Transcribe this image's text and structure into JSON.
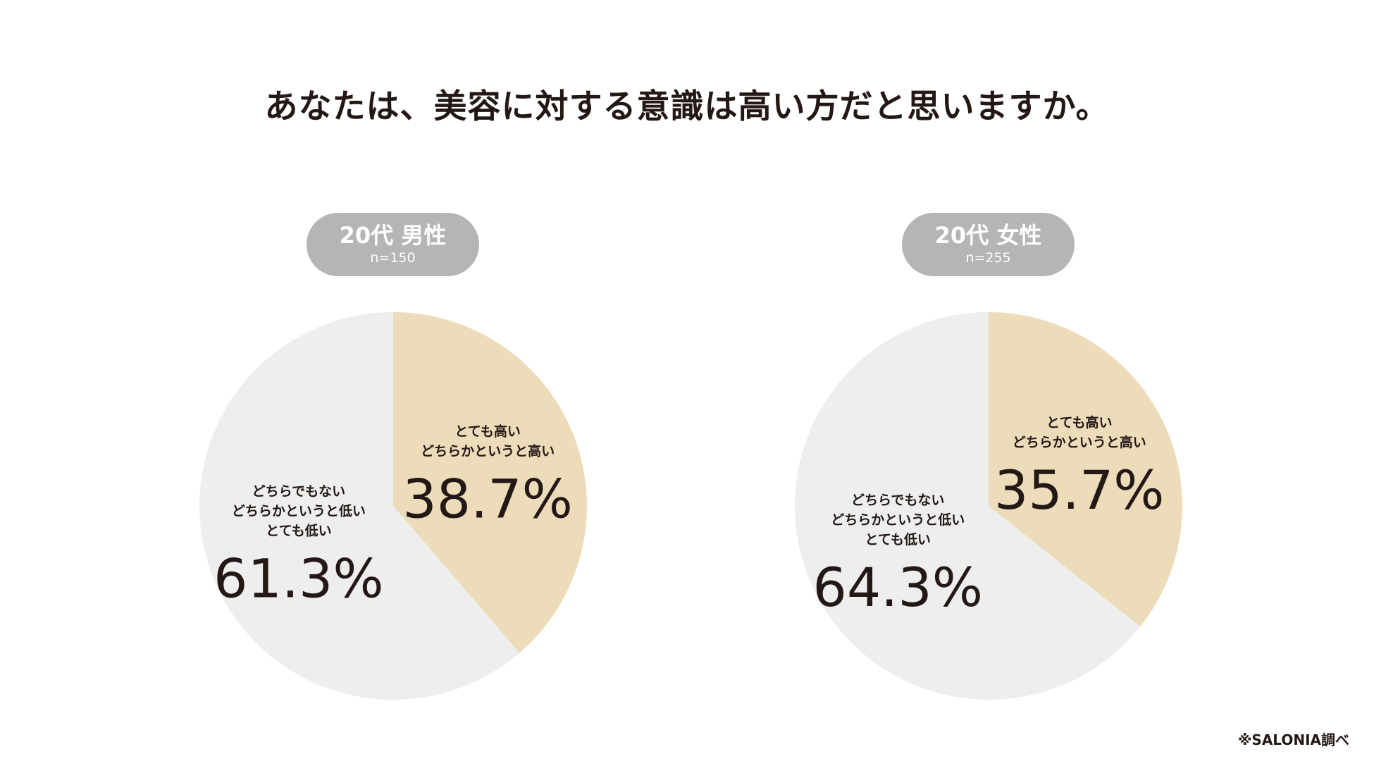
{
  "title": "あなたは、美容に対する意識は高い方だと思いますか。",
  "source": "※SALONIA調べ",
  "colors": {
    "high": "#eddcb9",
    "low": "#eeeeee",
    "badge": "#b5b5b5",
    "text": "#231815"
  },
  "chart_data": [
    {
      "type": "pie",
      "group": "20代 男性",
      "n": "n=150",
      "slices": [
        {
          "labels": [
            "とても高い",
            "どちらかというと高い"
          ],
          "value": 38.7,
          "value_label": "38.7%",
          "color": "#eddcb9"
        },
        {
          "labels": [
            "どちらでもない",
            "どちらかというと低い",
            "とても低い"
          ],
          "value": 61.3,
          "value_label": "61.3%",
          "color": "#eeeeee"
        }
      ]
    },
    {
      "type": "pie",
      "group": "20代 女性",
      "n": "n=255",
      "slices": [
        {
          "labels": [
            "とても高い",
            "どちらかというと高い"
          ],
          "value": 35.7,
          "value_label": "35.7%",
          "color": "#eddcb9"
        },
        {
          "labels": [
            "どちらでもない",
            "どちらかというと低い",
            "とても低い"
          ],
          "value": 64.3,
          "value_label": "64.3%",
          "color": "#eeeeee"
        }
      ]
    }
  ]
}
